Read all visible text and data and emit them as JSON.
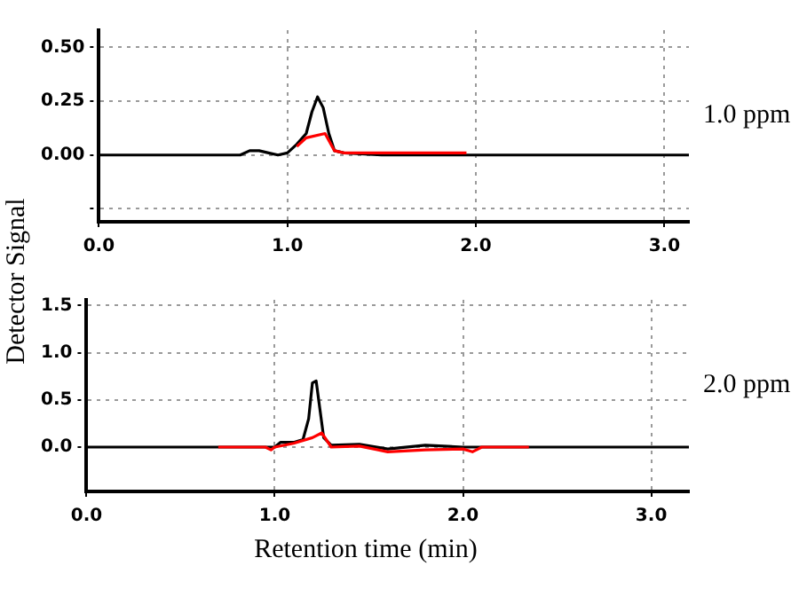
{
  "chart_data": [
    {
      "type": "line",
      "ylabel": "Detector Signal",
      "annotations": [
        "1.0 ppm"
      ],
      "xlim": [
        0,
        3.13
      ],
      "ylim": [
        -0.31,
        0.58
      ],
      "xticks": [
        {
          "value": 0,
          "label": "0.0"
        },
        {
          "value": 1,
          "label": "1.0"
        },
        {
          "value": 2,
          "label": "2.0"
        },
        {
          "value": 3,
          "label": "3.0"
        }
      ],
      "yticks": [
        {
          "value": -0.25,
          "label": null
        },
        {
          "value": 0,
          "label": "0.00"
        },
        {
          "value": 0.25,
          "label": "0.25"
        },
        {
          "value": 0.5,
          "label": "0.50"
        }
      ],
      "grid": true,
      "legend": false,
      "marker": "none",
      "line_style": "solid",
      "series": [
        {
          "color": "#000000",
          "x": [
            0,
            0.75,
            0.8,
            0.85,
            0.9,
            0.95,
            1.0,
            1.05,
            1.1,
            1.13,
            1.16,
            1.19,
            1.22,
            1.25,
            1.3,
            1.5,
            3.13
          ],
          "values": [
            0,
            0,
            0.02,
            0.02,
            0.01,
            0,
            0.01,
            0.05,
            0.1,
            0.2,
            0.27,
            0.22,
            0.1,
            0.02,
            0.01,
            0,
            0
          ]
        },
        {
          "color": "#ff0000",
          "x": [
            1.05,
            1.1,
            1.2,
            1.25,
            1.3,
            1.5,
            1.95
          ],
          "values": [
            0.04,
            0.08,
            0.1,
            0.02,
            0.01,
            0.01,
            0.01
          ]
        }
      ]
    },
    {
      "type": "line",
      "xlabel": "Retention time (min)",
      "annotations": [
        "2.0 ppm"
      ],
      "xlim": [
        0,
        3.2
      ],
      "ylim": [
        -0.47,
        1.56
      ],
      "xticks": [
        {
          "value": 0,
          "label": "0.0"
        },
        {
          "value": 1,
          "label": "1.0"
        },
        {
          "value": 2,
          "label": "2.0"
        },
        {
          "value": 3,
          "label": "3.0"
        }
      ],
      "yticks": [
        {
          "value": 0,
          "label": "0.0"
        },
        {
          "value": 0.5,
          "label": "0.5"
        },
        {
          "value": 1,
          "label": "1.0"
        },
        {
          "value": 1.5,
          "label": "1.5"
        }
      ],
      "grid": true,
      "legend": false,
      "marker": "none",
      "line_style": "solid",
      "series": [
        {
          "color": "#000000",
          "x": [
            0,
            0.95,
            1.0,
            1.03,
            1.1,
            1.15,
            1.18,
            1.2,
            1.22,
            1.24,
            1.26,
            1.3,
            1.45,
            1.6,
            1.8,
            2.0,
            3.2
          ],
          "values": [
            0,
            0,
            0,
            0.05,
            0.05,
            0.08,
            0.3,
            0.68,
            0.7,
            0.4,
            0.1,
            0.02,
            0.03,
            -0.02,
            0.02,
            0,
            0
          ]
        },
        {
          "color": "#ff0000",
          "x": [
            0.7,
            0.95,
            0.98,
            1.0,
            1.1,
            1.2,
            1.25,
            1.3,
            1.45,
            1.6,
            1.8,
            2.0,
            2.05,
            2.1,
            2.35
          ],
          "values": [
            0,
            0,
            -0.03,
            0,
            0.04,
            0.1,
            0.15,
            0,
            0.01,
            -0.05,
            -0.03,
            -0.02,
            -0.05,
            0,
            0
          ]
        }
      ]
    }
  ]
}
